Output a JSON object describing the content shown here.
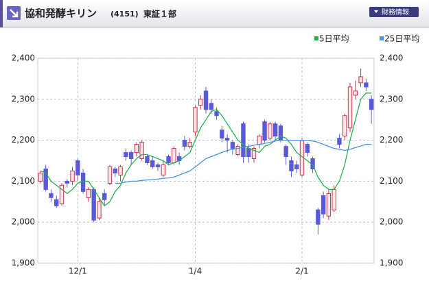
{
  "header": {
    "title": "協和発酵キリン",
    "code": "(4151)",
    "market": "東証１部",
    "button": "財務情報"
  },
  "chart_data": {
    "type": "candlestick",
    "categories": [
      null,
      null,
      null,
      null,
      null,
      null,
      null,
      "12/1",
      null,
      null,
      null,
      null,
      null,
      null,
      null,
      null,
      null,
      null,
      null,
      null,
      null,
      null,
      null,
      null,
      null,
      null,
      null,
      null,
      null,
      "1/4",
      null,
      null,
      null,
      null,
      null,
      null,
      null,
      null,
      null,
      null,
      null,
      null,
      null,
      null,
      null,
      null,
      null,
      null,
      null,
      "2/1",
      null,
      null,
      null,
      null,
      null,
      null,
      null,
      null,
      null,
      null,
      null,
      null,
      null
    ],
    "open": [
      2100,
      2130,
      2070,
      2055,
      2045,
      2100,
      2100,
      2150,
      2120,
      2060,
      2080,
      2010,
      2070,
      2095,
      2130,
      2115,
      2170,
      2170,
      2170,
      2155,
      2160,
      2150,
      2140,
      2115,
      2160,
      2145,
      2160,
      2200,
      2185,
      2220,
      2285,
      2320,
      2290,
      2270,
      2225,
      2205,
      2195,
      2165,
      2240,
      2180,
      2155,
      2190,
      2245,
      2205,
      2240,
      2235,
      2185,
      2150,
      2140,
      2115,
      2190,
      2155,
      2030,
      2065,
      2015,
      2030,
      2205,
      2210,
      2230,
      2310,
      2340,
      2340,
      2300
    ],
    "high": [
      2125,
      2140,
      2080,
      2065,
      2095,
      2105,
      2135,
      2155,
      2130,
      2085,
      2085,
      2060,
      2080,
      2140,
      2135,
      2140,
      2180,
      2175,
      2195,
      2200,
      2165,
      2160,
      2145,
      2150,
      2165,
      2185,
      2170,
      2210,
      2205,
      2285,
      2310,
      2330,
      2300,
      2280,
      2235,
      2215,
      2200,
      2190,
      2245,
      2190,
      2185,
      2215,
      2250,
      2245,
      2245,
      2240,
      2190,
      2160,
      2150,
      2205,
      2195,
      2160,
      2035,
      2075,
      2080,
      2090,
      2215,
      2265,
      2340,
      2345,
      2375,
      2350,
      2310
    ],
    "low": [
      2095,
      2075,
      2050,
      2035,
      2040,
      2085,
      2090,
      2100,
      2070,
      2050,
      2000,
      2005,
      2040,
      2090,
      2110,
      2100,
      2150,
      2140,
      2160,
      2150,
      2140,
      2130,
      2125,
      2110,
      2140,
      2140,
      2140,
      2175,
      2180,
      2210,
      2275,
      2265,
      2265,
      2250,
      2195,
      2170,
      2165,
      2160,
      2145,
      2145,
      2145,
      2180,
      2195,
      2200,
      2200,
      2195,
      2140,
      2110,
      2120,
      2110,
      2160,
      2120,
      1970,
      2010,
      2005,
      2025,
      2180,
      2200,
      2220,
      2300,
      2330,
      2320,
      2240
    ],
    "close": [
      2120,
      2080,
      2060,
      2040,
      2090,
      2095,
      2125,
      2115,
      2075,
      2080,
      2005,
      2050,
      2055,
      2135,
      2120,
      2135,
      2160,
      2155,
      2190,
      2195,
      2145,
      2135,
      2135,
      2140,
      2145,
      2180,
      2150,
      2185,
      2195,
      2280,
      2300,
      2275,
      2275,
      2260,
      2205,
      2200,
      2180,
      2185,
      2160,
      2160,
      2180,
      2210,
      2200,
      2240,
      2210,
      2200,
      2160,
      2125,
      2130,
      2200,
      2170,
      2130,
      1995,
      2020,
      2070,
      2080,
      2190,
      2260,
      2330,
      2320,
      2355,
      2330,
      2275
    ],
    "up_color": "#c8304a",
    "up_fill": "#fbe6ea",
    "down_color": "#5a5ad6",
    "series": [
      {
        "name": "5日平均",
        "color": "#22b14c",
        "values": [
          2125,
          2120,
          2100,
          2090,
          2080,
          2070,
          2080,
          2095,
          2100,
          2100,
          2080,
          2060,
          2040,
          2050,
          2075,
          2090,
          2120,
          2140,
          2155,
          2165,
          2165,
          2160,
          2155,
          2150,
          2140,
          2145,
          2150,
          2160,
          2170,
          2200,
          2230,
          2250,
          2270,
          2275,
          2260,
          2240,
          2220,
          2200,
          2190,
          2180,
          2175,
          2170,
          2185,
          2190,
          2200,
          2210,
          2205,
          2190,
          2170,
          2160,
          2150,
          2140,
          2110,
          2090,
          2080,
          2080,
          2100,
          2140,
          2200,
          2250,
          2300,
          2315,
          2315
        ]
      },
      {
        "name": "25日平均",
        "color": "#4d8fe0",
        "values": [
          null,
          null,
          null,
          null,
          null,
          null,
          null,
          null,
          null,
          null,
          null,
          null,
          null,
          null,
          2095,
          2095,
          2098,
          2100,
          2100,
          2102,
          2103,
          2104,
          2105,
          2107,
          2108,
          2110,
          2115,
          2120,
          2125,
          2135,
          2145,
          2155,
          2160,
          2165,
          2170,
          2175,
          2178,
          2180,
          2183,
          2185,
          2188,
          2190,
          2192,
          2195,
          2198,
          2200,
          2200,
          2200,
          2200,
          2200,
          2200,
          2198,
          2195,
          2190,
          2185,
          2180,
          2178,
          2175,
          2178,
          2182,
          2186,
          2190,
          2190
        ]
      }
    ],
    "ylim": [
      1900,
      2400
    ],
    "yticks": [
      {
        "value": 1900,
        "label": "1,900"
      },
      {
        "value": 2000,
        "label": "2,000"
      },
      {
        "value": 2100,
        "label": "2,100"
      },
      {
        "value": 2200,
        "label": "2,200"
      },
      {
        "value": 2300,
        "label": "2,300"
      },
      {
        "value": 2400,
        "label": "2,400"
      }
    ],
    "grid": true
  }
}
